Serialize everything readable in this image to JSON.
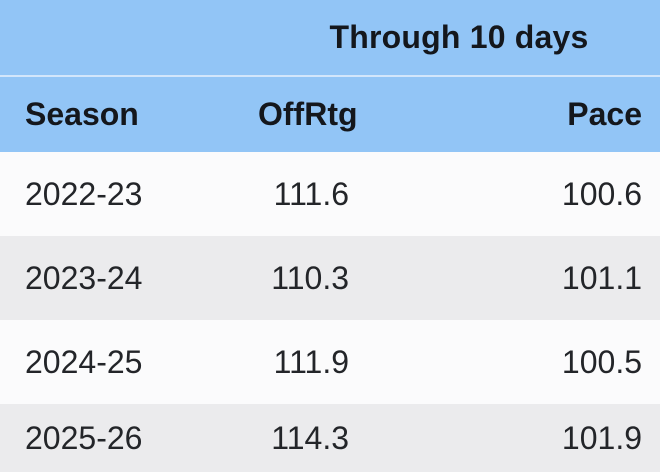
{
  "chart_data": {
    "type": "table",
    "title": "Through 10 days",
    "columns": [
      "Season",
      "OffRtg",
      "Pace"
    ],
    "rows": [
      {
        "season": "2022-23",
        "offrtg": "111.6",
        "pace": "100.6"
      },
      {
        "season": "2023-24",
        "offrtg": "110.3",
        "pace": "101.1"
      },
      {
        "season": "2024-25",
        "offrtg": "111.9",
        "pace": "100.5"
      },
      {
        "season": "2025-26",
        "offrtg": "114.3",
        "pace": "101.9"
      }
    ]
  },
  "colors": {
    "header_bg": "#92c5f6",
    "header_separator": "#d2e6fb",
    "row_bg": "#fbfbfc",
    "row_alt_bg": "#ebebed",
    "header_text": "#14171c",
    "data_text": "#232529"
  }
}
